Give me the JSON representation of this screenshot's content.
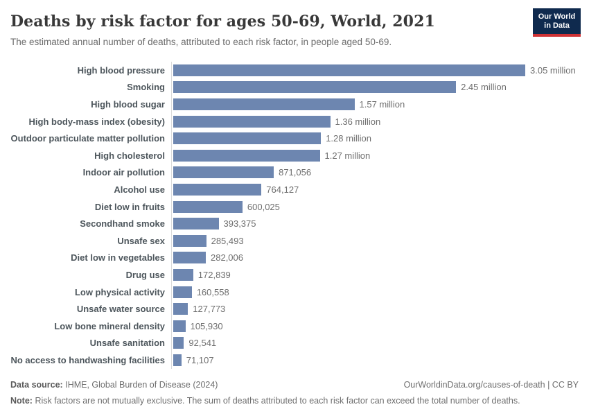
{
  "header": {
    "title": "Deaths by risk factor for ages 50-69, World, 2021",
    "subtitle": "The estimated annual number of deaths, attributed to each risk factor, in people aged 50-69.",
    "logo_line1": "Our World",
    "logo_line2": "in Data"
  },
  "chart_data": {
    "type": "bar",
    "orientation": "horizontal",
    "title": "Deaths by risk factor for ages 50-69, World, 2021",
    "xlabel": "",
    "ylabel": "",
    "xlim": [
      0,
      3050000
    ],
    "grid": false,
    "legend": false,
    "bar_color": "#6d86b0",
    "axis_line_color": "#dcdcdc",
    "categories": [
      "High blood pressure",
      "Smoking",
      "High blood sugar",
      "High body-mass index (obesity)",
      "Outdoor particulate matter pollution",
      "High cholesterol",
      "Indoor air pollution",
      "Alcohol use",
      "Diet low in fruits",
      "Secondhand smoke",
      "Unsafe sex",
      "Diet low in vegetables",
      "Drug use",
      "Low physical activity",
      "Unsafe water source",
      "Low bone mineral density",
      "Unsafe sanitation",
      "No access to handwashing facilities"
    ],
    "values": [
      3050000,
      2450000,
      1570000,
      1360000,
      1280000,
      1270000,
      871056,
      764127,
      600025,
      393375,
      285493,
      282006,
      172839,
      160558,
      127773,
      105930,
      92541,
      71107
    ],
    "value_labels": [
      "3.05 million",
      "2.45 million",
      "1.57 million",
      "1.36 million",
      "1.28 million",
      "1.27 million",
      "871,056",
      "764,127",
      "600,025",
      "393,375",
      "285,493",
      "282,006",
      "172,839",
      "160,558",
      "127,773",
      "105,930",
      "92,541",
      "71,107"
    ]
  },
  "footer": {
    "source_label": "Data source:",
    "source_text": "IHME, Global Burden of Disease (2024)",
    "link_text": "OurWorldinData.org/causes-of-death | CC BY",
    "note_label": "Note:",
    "note_text": "Risk factors are not mutually exclusive. The sum of deaths attributed to each risk factor can exceed the total number of deaths."
  }
}
